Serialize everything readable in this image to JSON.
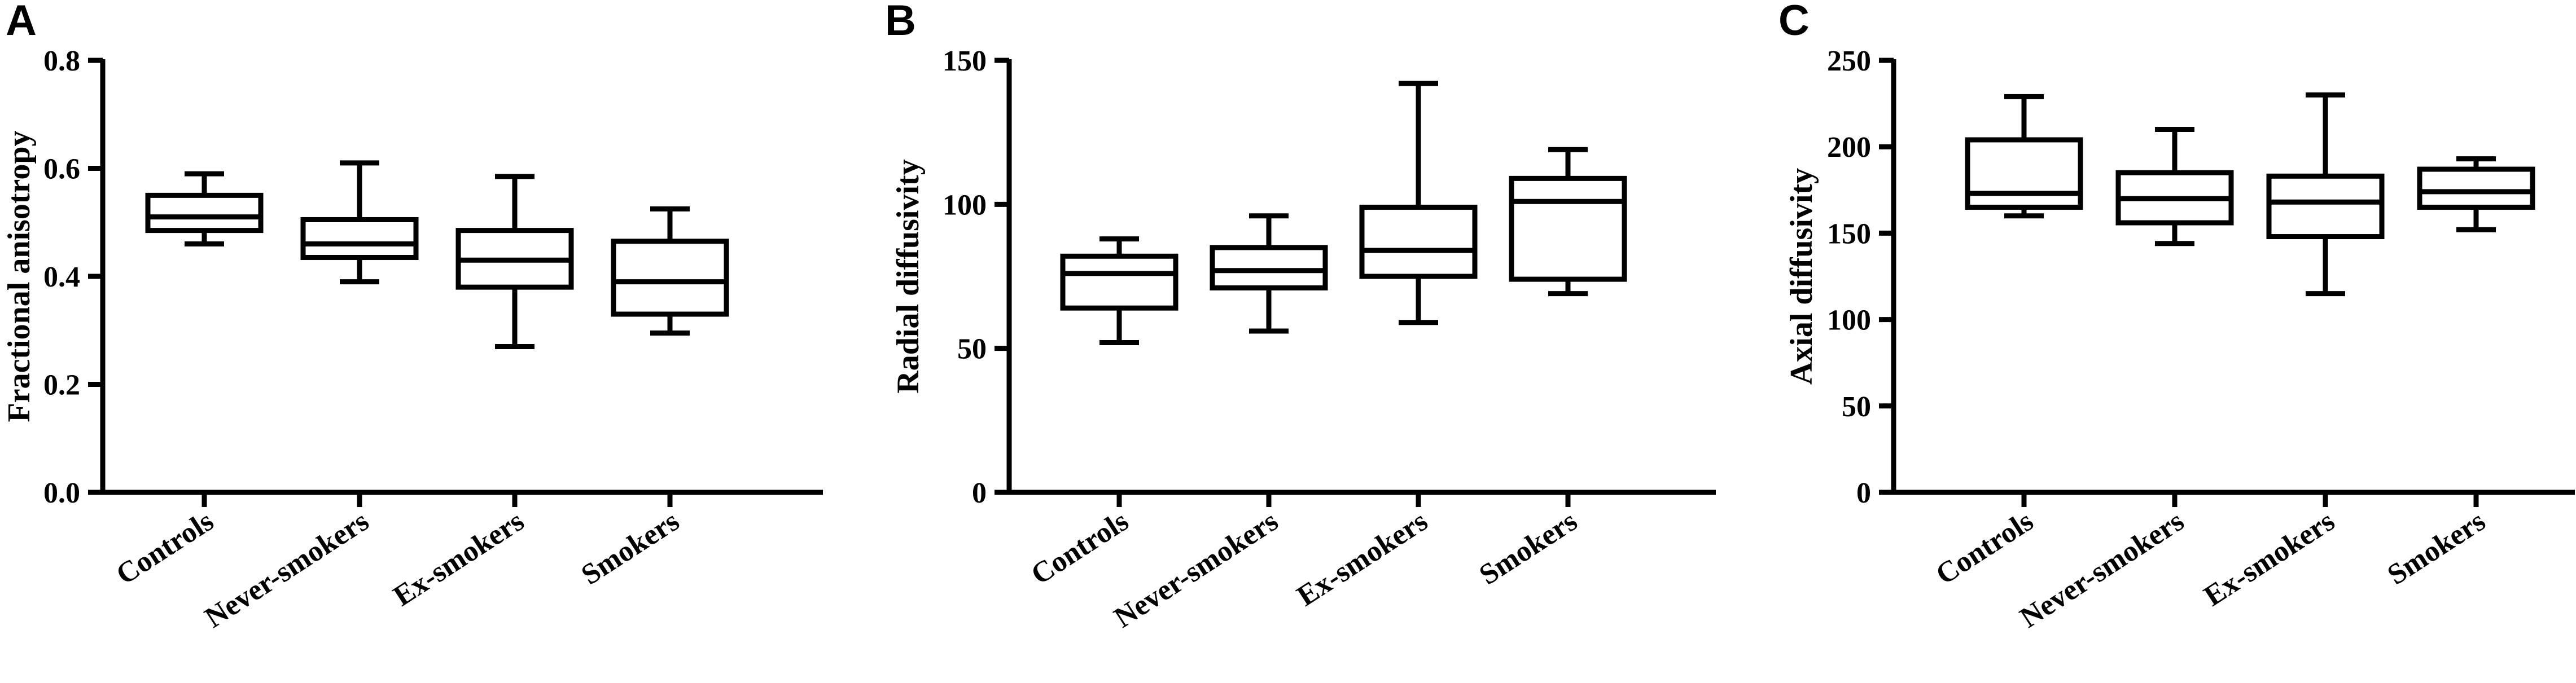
{
  "figure": {
    "panels": [
      "A",
      "B",
      "C"
    ]
  },
  "chart_data": [
    {
      "panel": "A",
      "type": "box",
      "ylabel": "Fractional anisotropy",
      "ylim": [
        0.0,
        0.8
      ],
      "yticks": [
        "0.0",
        "0.2",
        "0.4",
        "0.6",
        "0.8"
      ],
      "categories": [
        "Controls",
        "Never-smokers",
        "Ex-smokers",
        "Smokers"
      ],
      "boxes": [
        {
          "min": 0.46,
          "q1": 0.485,
          "median": 0.51,
          "q3": 0.55,
          "max": 0.59
        },
        {
          "min": 0.39,
          "q1": 0.435,
          "median": 0.46,
          "q3": 0.505,
          "max": 0.61
        },
        {
          "min": 0.27,
          "q1": 0.38,
          "median": 0.43,
          "q3": 0.485,
          "max": 0.585
        },
        {
          "min": 0.295,
          "q1": 0.33,
          "median": 0.39,
          "q3": 0.465,
          "max": 0.525
        }
      ]
    },
    {
      "panel": "B",
      "type": "box",
      "ylabel": "Radial diffusivity",
      "ylim": [
        0,
        150
      ],
      "yticks": [
        "0",
        "50",
        "100",
        "150"
      ],
      "categories": [
        "Controls",
        "Never-smokers",
        "Ex-smokers",
        "Smokers"
      ],
      "boxes": [
        {
          "min": 52,
          "q1": 64,
          "median": 76,
          "q3": 82,
          "max": 88
        },
        {
          "min": 56,
          "q1": 71,
          "median": 77,
          "q3": 85,
          "max": 96
        },
        {
          "min": 59,
          "q1": 75,
          "median": 84,
          "q3": 99,
          "max": 142
        },
        {
          "min": 69,
          "q1": 74,
          "median": 101,
          "q3": 109,
          "max": 119
        }
      ]
    },
    {
      "panel": "C",
      "type": "box",
      "ylabel": "Axial diffusivity",
      "ylim": [
        0,
        250
      ],
      "yticks": [
        "0",
        "50",
        "100",
        "150",
        "200",
        "250"
      ],
      "categories": [
        "Controls",
        "Never-smokers",
        "Ex-smokers",
        "Smokers"
      ],
      "boxes": [
        {
          "min": 160,
          "q1": 165,
          "median": 173,
          "q3": 204,
          "max": 229
        },
        {
          "min": 144,
          "q1": 156,
          "median": 170,
          "q3": 185,
          "max": 210
        },
        {
          "min": 115,
          "q1": 148,
          "median": 168,
          "q3": 183,
          "max": 230
        },
        {
          "min": 152,
          "q1": 165,
          "median": 174,
          "q3": 187,
          "max": 193
        }
      ]
    }
  ]
}
